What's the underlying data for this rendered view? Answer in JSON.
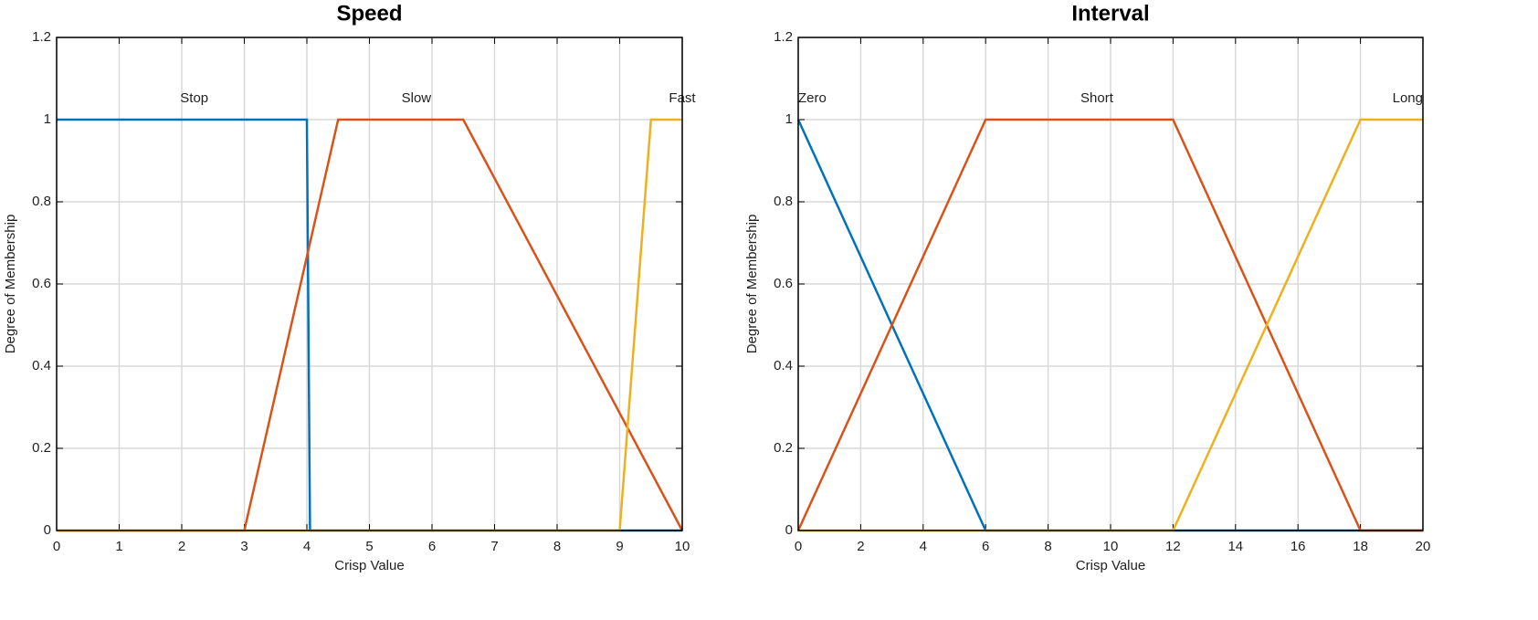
{
  "chart_data": [
    {
      "type": "line",
      "title": "Speed",
      "xlabel": "Crisp Value",
      "ylabel": "Degree of Membership",
      "xlim": [
        0,
        10
      ],
      "ylim": [
        0,
        1.2
      ],
      "xticks": [
        0,
        1,
        2,
        3,
        4,
        5,
        6,
        7,
        8,
        9,
        10
      ],
      "yticks": [
        0,
        0.2,
        0.4,
        0.6,
        0.8,
        1,
        1.2
      ],
      "grid": true,
      "series": [
        {
          "name": "Stop",
          "color": "#0072bd",
          "x": [
            0,
            4,
            4.05,
            10
          ],
          "values": [
            1,
            1,
            0,
            0
          ]
        },
        {
          "name": "Slow",
          "color": "#d95319",
          "x": [
            0,
            3,
            4.5,
            6.5,
            10
          ],
          "values": [
            0,
            0,
            1,
            1,
            0
          ]
        },
        {
          "name": "Fast",
          "color": "#edb120",
          "x": [
            0,
            9,
            9.5,
            10
          ],
          "values": [
            0,
            0,
            1,
            1
          ]
        }
      ]
    },
    {
      "type": "line",
      "title": "Interval",
      "xlabel": "Crisp Value",
      "ylabel": "Degree of Membership",
      "xlim": [
        0,
        20
      ],
      "ylim": [
        0,
        1.2
      ],
      "xticks": [
        0,
        2,
        4,
        6,
        8,
        10,
        12,
        14,
        16,
        18,
        20
      ],
      "yticks": [
        0,
        0.2,
        0.4,
        0.6,
        0.8,
        1,
        1.2
      ],
      "grid": true,
      "series": [
        {
          "name": "Zero",
          "color": "#0072bd",
          "x": [
            0,
            6,
            20
          ],
          "values": [
            1,
            0,
            0
          ]
        },
        {
          "name": "Short",
          "color": "#d95319",
          "x": [
            0,
            6,
            12,
            18,
            20
          ],
          "values": [
            0,
            1,
            1,
            0,
            0
          ]
        },
        {
          "name": "Long",
          "color": "#edb120",
          "x": [
            0,
            12,
            18,
            20
          ],
          "values": [
            0,
            0,
            1,
            1
          ]
        }
      ]
    }
  ]
}
